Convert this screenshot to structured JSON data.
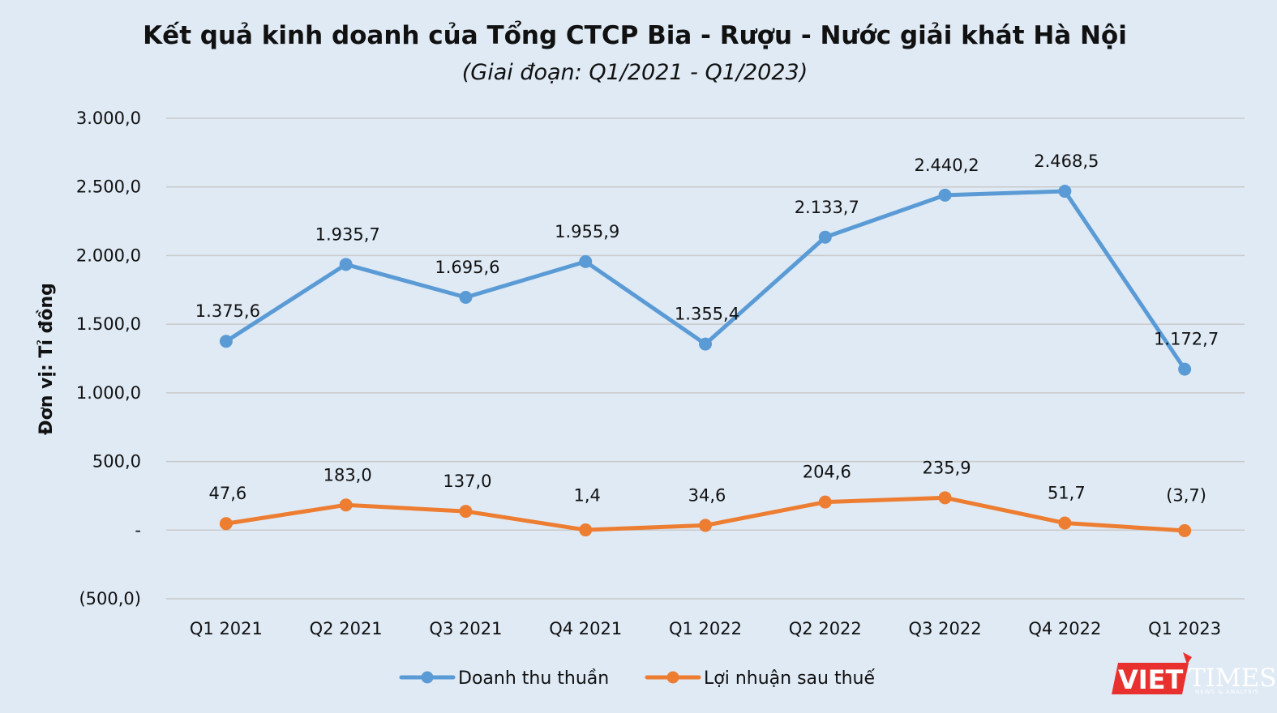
{
  "chart_data": {
    "type": "line",
    "title": "Kết quả kinh doanh của Tổng CTCP Bia - Rượu - Nước giải khát Hà Nội",
    "subtitle": "(Giai đoạn: Q1/2021 - Q1/2023)",
    "ylabel": "Đơn vị: Tỉ đồng",
    "xlabel": "",
    "ylim": [
      -500,
      3000
    ],
    "yticks": [
      {
        "value": 3000,
        "label": "3.000,0"
      },
      {
        "value": 2500,
        "label": "2.500,0"
      },
      {
        "value": 2000,
        "label": "2.000,0"
      },
      {
        "value": 1500,
        "label": "1.500,0"
      },
      {
        "value": 1000,
        "label": "1.000,0"
      },
      {
        "value": 500,
        "label": "500,0"
      },
      {
        "value": 0,
        "label": "-"
      },
      {
        "value": -500,
        "label": "(500,0)"
      }
    ],
    "grid": true,
    "legend_position": "bottom",
    "categories": [
      "Q1 2021",
      "Q2 2021",
      "Q3 2021",
      "Q4 2021",
      "Q1 2022",
      "Q2 2022",
      "Q3 2022",
      "Q4 2022",
      "Q1 2023"
    ],
    "series": [
      {
        "name": "Doanh thu thuần",
        "color": "#5b9bd5",
        "values": [
          1375.6,
          1935.7,
          1695.6,
          1955.9,
          1355.4,
          2133.7,
          2440.2,
          2468.5,
          1172.7
        ],
        "labels": [
          "1.375,6",
          "1.935,7",
          "1.695,6",
          "1.955,9",
          "1.355,4",
          "2.133,7",
          "2.440,2",
          "2.468,5",
          "1.172,7"
        ]
      },
      {
        "name": "Lợi nhuận sau thuế",
        "color": "#ed7d31",
        "values": [
          47.6,
          183.0,
          137.0,
          1.4,
          34.6,
          204.6,
          235.9,
          51.7,
          -3.7
        ],
        "labels": [
          "47,6",
          "183,0",
          "137,0",
          "1,4",
          "34,6",
          "204,6",
          "235,9",
          "51,7",
          "(3,7)"
        ]
      }
    ]
  },
  "logo": {
    "brand": "VIET",
    "times": "TIMES",
    "tagline": "NEWS & ANALYSIS",
    "brand_color": "#e8312f"
  }
}
